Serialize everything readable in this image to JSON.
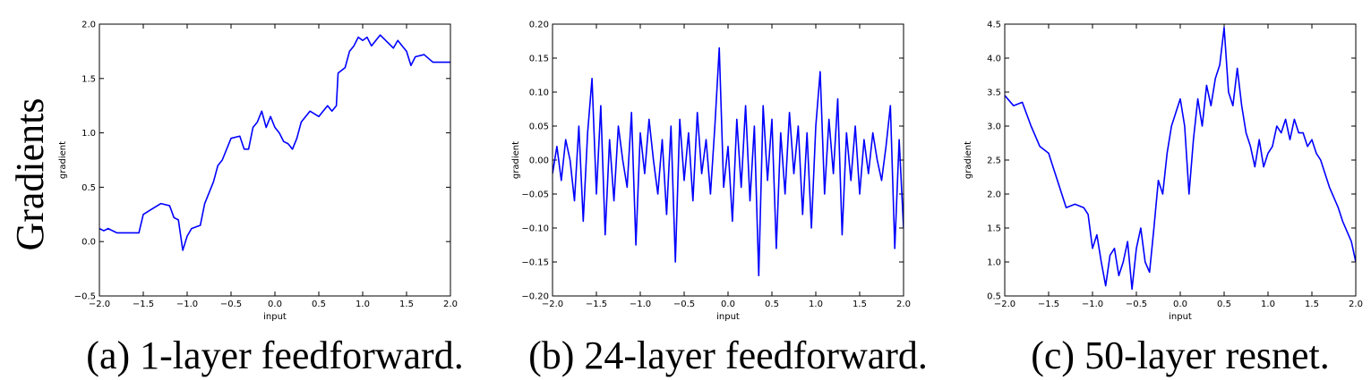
{
  "row_label": "Gradients",
  "chart_data": [
    {
      "type": "line",
      "caption": "(a) 1-layer feedforward.",
      "xlabel": "input",
      "ylabel": "gradient",
      "color": "#0000ff",
      "x": [
        -2,
        -1.95,
        -1.9,
        -1.85,
        -1.8,
        -1.55,
        -1.5,
        -1.4,
        -1.3,
        -1.2,
        -1.15,
        -1.1,
        -1.05,
        -1,
        -0.95,
        -0.85,
        -0.8,
        -0.7,
        -0.65,
        -0.6,
        -0.5,
        -0.4,
        -0.35,
        -0.3,
        -0.25,
        -0.2,
        -0.15,
        -0.1,
        -0.05,
        0,
        0.05,
        0.1,
        0.15,
        0.2,
        0.25,
        0.3,
        0.35,
        0.4,
        0.5,
        0.55,
        0.6,
        0.65,
        0.7,
        0.72,
        0.8,
        0.85,
        0.9,
        0.95,
        1,
        1.05,
        1.1,
        1.15,
        1.2,
        1.3,
        1.35,
        1.4,
        1.45,
        1.5,
        1.55,
        1.6,
        1.7,
        1.8,
        1.9,
        2
      ],
      "values": [
        0.12,
        0.1,
        0.12,
        0.1,
        0.08,
        0.08,
        0.25,
        0.3,
        0.35,
        0.33,
        0.22,
        0.2,
        -0.08,
        0.05,
        0.12,
        0.15,
        0.35,
        0.55,
        0.7,
        0.75,
        0.95,
        0.97,
        0.85,
        0.85,
        1.05,
        1.1,
        1.2,
        1.05,
        1.15,
        1.05,
        1.0,
        0.92,
        0.9,
        0.85,
        0.95,
        1.1,
        1.15,
        1.2,
        1.15,
        1.2,
        1.25,
        1.2,
        1.25,
        1.55,
        1.6,
        1.75,
        1.8,
        1.88,
        1.85,
        1.88,
        1.8,
        1.85,
        1.9,
        1.82,
        1.78,
        1.85,
        1.8,
        1.75,
        1.62,
        1.7,
        1.72,
        1.65,
        1.65,
        1.65
      ],
      "xlim": [
        -2,
        2
      ],
      "ylim": [
        -0.5,
        2
      ],
      "xticks": [
        {
          "value": -2,
          "label": "−2.0"
        },
        {
          "value": -1.5,
          "label": "−1.5"
        },
        {
          "value": -1,
          "label": "−1.0"
        },
        {
          "value": -0.5,
          "label": "−0.5"
        },
        {
          "value": 0,
          "label": "0.0"
        },
        {
          "value": 0.5,
          "label": "0.5"
        },
        {
          "value": 1,
          "label": "1.0"
        },
        {
          "value": 1.5,
          "label": "1.5"
        },
        {
          "value": 2,
          "label": "2.0"
        }
      ],
      "yticks": [
        {
          "value": -0.5,
          "label": "−0.5"
        },
        {
          "value": 0,
          "label": "0.0"
        },
        {
          "value": 0.5,
          "label": "0.5"
        },
        {
          "value": 1,
          "label": "1.0"
        },
        {
          "value": 1.5,
          "label": "1.5"
        },
        {
          "value": 2,
          "label": "2.0"
        }
      ]
    },
    {
      "type": "line",
      "caption": "(b) 24-layer feedforward.",
      "xlabel": "input",
      "ylabel": "gradient",
      "color": "#0000ff",
      "x": [
        -2,
        -1.95,
        -1.9,
        -1.85,
        -1.8,
        -1.75,
        -1.7,
        -1.65,
        -1.6,
        -1.55,
        -1.5,
        -1.45,
        -1.4,
        -1.35,
        -1.3,
        -1.25,
        -1.2,
        -1.15,
        -1.1,
        -1.05,
        -1,
        -0.95,
        -0.9,
        -0.85,
        -0.8,
        -0.75,
        -0.7,
        -0.65,
        -0.6,
        -0.55,
        -0.5,
        -0.45,
        -0.4,
        -0.35,
        -0.3,
        -0.25,
        -0.2,
        -0.15,
        -0.1,
        -0.05,
        0,
        0.05,
        0.1,
        0.15,
        0.2,
        0.25,
        0.3,
        0.35,
        0.4,
        0.45,
        0.5,
        0.55,
        0.6,
        0.65,
        0.7,
        0.75,
        0.8,
        0.85,
        0.9,
        0.95,
        1,
        1.05,
        1.1,
        1.15,
        1.2,
        1.25,
        1.3,
        1.35,
        1.4,
        1.45,
        1.5,
        1.55,
        1.6,
        1.65,
        1.7,
        1.75,
        1.8,
        1.85,
        1.9,
        1.95,
        2
      ],
      "values": [
        -0.02,
        0.02,
        -0.03,
        0.03,
        0.0,
        -0.06,
        0.05,
        -0.09,
        0.04,
        0.12,
        -0.05,
        0.08,
        -0.11,
        0.03,
        -0.06,
        0.05,
        0.0,
        -0.04,
        0.07,
        -0.125,
        0.04,
        -0.02,
        0.06,
        0.0,
        -0.05,
        0.03,
        -0.08,
        0.05,
        -0.15,
        0.06,
        -0.03,
        0.04,
        -0.06,
        0.07,
        -0.02,
        0.03,
        -0.05,
        0.05,
        0.165,
        -0.04,
        0.02,
        -0.09,
        0.06,
        -0.04,
        0.08,
        -0.06,
        0.05,
        -0.17,
        0.08,
        -0.03,
        0.06,
        -0.13,
        0.04,
        -0.05,
        0.07,
        -0.02,
        0.05,
        -0.08,
        0.04,
        -0.1,
        0.05,
        0.13,
        -0.05,
        0.06,
        -0.02,
        0.09,
        -0.11,
        0.04,
        -0.03,
        0.05,
        -0.05,
        0.03,
        -0.02,
        0.04,
        0.0,
        -0.03,
        0.02,
        0.08,
        -0.13,
        0.03,
        -0.1
      ],
      "xlim": [
        -2,
        2
      ],
      "ylim": [
        -0.2,
        0.2
      ],
      "xticks": [
        {
          "value": -2,
          "label": "−2.0"
        },
        {
          "value": -1.5,
          "label": "−1.5"
        },
        {
          "value": -1,
          "label": "−1.0"
        },
        {
          "value": -0.5,
          "label": "−0.5"
        },
        {
          "value": 0,
          "label": "0.0"
        },
        {
          "value": 0.5,
          "label": "0.5"
        },
        {
          "value": 1,
          "label": "1.0"
        },
        {
          "value": 1.5,
          "label": "1.5"
        },
        {
          "value": 2,
          "label": "2.0"
        }
      ],
      "yticks": [
        {
          "value": -0.2,
          "label": "−0.20"
        },
        {
          "value": -0.15,
          "label": "−0.15"
        },
        {
          "value": -0.1,
          "label": "−0.10"
        },
        {
          "value": -0.05,
          "label": "−0.05"
        },
        {
          "value": 0,
          "label": "0.00"
        },
        {
          "value": 0.05,
          "label": "0.05"
        },
        {
          "value": 0.1,
          "label": "0.10"
        },
        {
          "value": 0.15,
          "label": "0.15"
        },
        {
          "value": 0.2,
          "label": "0.20"
        }
      ]
    },
    {
      "type": "line",
      "caption": "(c) 50-layer resnet.",
      "xlabel": "input",
      "ylabel": "gradient",
      "color": "#0000ff",
      "x": [
        -2,
        -1.9,
        -1.8,
        -1.7,
        -1.6,
        -1.5,
        -1.45,
        -1.4,
        -1.35,
        -1.3,
        -1.2,
        -1.1,
        -1.05,
        -1,
        -0.95,
        -0.9,
        -0.85,
        -0.8,
        -0.75,
        -0.7,
        -0.65,
        -0.6,
        -0.55,
        -0.5,
        -0.45,
        -0.4,
        -0.35,
        -0.3,
        -0.25,
        -0.2,
        -0.15,
        -0.1,
        -0.05,
        0,
        0.05,
        0.1,
        0.15,
        0.2,
        0.25,
        0.3,
        0.35,
        0.4,
        0.45,
        0.5,
        0.55,
        0.6,
        0.65,
        0.7,
        0.75,
        0.8,
        0.85,
        0.9,
        0.95,
        1,
        1.05,
        1.1,
        1.15,
        1.2,
        1.25,
        1.3,
        1.35,
        1.4,
        1.45,
        1.5,
        1.55,
        1.6,
        1.65,
        1.7,
        1.75,
        1.8,
        1.85,
        1.9,
        1.95,
        2
      ],
      "values": [
        3.45,
        3.3,
        3.35,
        3.0,
        2.7,
        2.6,
        2.4,
        2.2,
        2.0,
        1.8,
        1.85,
        1.8,
        1.7,
        1.2,
        1.4,
        1.0,
        0.65,
        1.1,
        1.2,
        0.8,
        1.0,
        1.3,
        0.6,
        1.2,
        1.5,
        1.0,
        0.85,
        1.5,
        2.2,
        2.0,
        2.6,
        3.0,
        3.2,
        3.4,
        3.0,
        2.0,
        2.8,
        3.4,
        3.0,
        3.6,
        3.3,
        3.7,
        3.9,
        4.45,
        3.5,
        3.3,
        3.85,
        3.3,
        2.9,
        2.7,
        2.4,
        2.8,
        2.4,
        2.6,
        2.7,
        3.0,
        2.9,
        3.1,
        2.8,
        3.1,
        2.9,
        2.9,
        2.7,
        2.8,
        2.6,
        2.5,
        2.3,
        2.1,
        1.95,
        1.8,
        1.6,
        1.45,
        1.3,
        1.0
      ],
      "xlim": [
        -2,
        2
      ],
      "ylim": [
        0.5,
        4.5
      ],
      "xticks": [
        {
          "value": -2,
          "label": "−2.0"
        },
        {
          "value": -1.5,
          "label": "−1.5"
        },
        {
          "value": -1,
          "label": "−1.0"
        },
        {
          "value": -0.5,
          "label": "−0.5"
        },
        {
          "value": 0,
          "label": "0.0"
        },
        {
          "value": 0.5,
          "label": "0.5"
        },
        {
          "value": 1,
          "label": "1.0"
        },
        {
          "value": 1.5,
          "label": "1.5"
        },
        {
          "value": 2,
          "label": "2.0"
        }
      ],
      "yticks": [
        {
          "value": 0.5,
          "label": "0.5"
        },
        {
          "value": 1,
          "label": "1.0"
        },
        {
          "value": 1.5,
          "label": "1.5"
        },
        {
          "value": 2,
          "label": "2.0"
        },
        {
          "value": 2.5,
          "label": "2.5"
        },
        {
          "value": 3,
          "label": "3.0"
        },
        {
          "value": 3.5,
          "label": "3.5"
        },
        {
          "value": 4,
          "label": "4.0"
        },
        {
          "value": 4.5,
          "label": "4.5"
        }
      ]
    }
  ]
}
